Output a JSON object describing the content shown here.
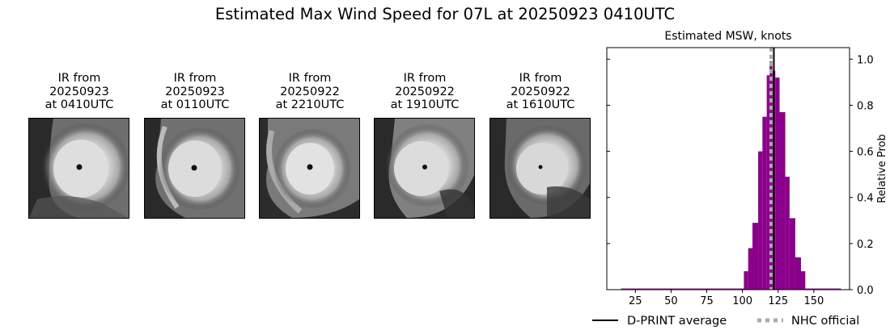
{
  "figure": {
    "title": "Estimated Max Wind Speed for 07L at 20250923 0410UTC"
  },
  "ir_panels": [
    {
      "line1": "IR from",
      "line2": "20250923",
      "line3": "at 0410UTC"
    },
    {
      "line1": "IR from",
      "line2": "20250923",
      "line3": "at 0110UTC"
    },
    {
      "line1": "IR from",
      "line2": "20250922",
      "line3": "at 2210UTC"
    },
    {
      "line1": "IR from",
      "line2": "20250922",
      "line3": "at 1910UTC"
    },
    {
      "line1": "IR from",
      "line2": "20250922",
      "line3": "at 1610UTC"
    }
  ],
  "chart_data": {
    "type": "bar",
    "title": "Estimated MSW, knots",
    "xlabel": "",
    "ylabel": "Relative Prob",
    "xlim": [
      5,
      175
    ],
    "ylim": [
      0,
      1.05
    ],
    "xticks": [
      25,
      50,
      75,
      100,
      125,
      150
    ],
    "yticks": [
      0.0,
      0.2,
      0.4,
      0.6,
      0.8,
      1.0
    ],
    "ytick_labels": [
      "0.0",
      "0.2",
      "0.4",
      "0.6",
      "0.8",
      "1.0"
    ],
    "y_axis_side": "right",
    "grid": false,
    "bar_color": "#8b008b",
    "bins": [
      {
        "x0": 15,
        "x1": 101,
        "value": 0.005
      },
      {
        "x0": 101,
        "x1": 104,
        "value": 0.08
      },
      {
        "x0": 104,
        "x1": 107,
        "value": 0.18
      },
      {
        "x0": 107,
        "x1": 111,
        "value": 0.29
      },
      {
        "x0": 111,
        "x1": 114,
        "value": 0.6
      },
      {
        "x0": 114,
        "x1": 117,
        "value": 0.75
      },
      {
        "x0": 117,
        "x1": 119,
        "value": 0.93
      },
      {
        "x0": 119,
        "x1": 121,
        "value": 0.99
      },
      {
        "x0": 121,
        "x1": 123,
        "value": 0.95
      },
      {
        "x0": 123,
        "x1": 126,
        "value": 0.92
      },
      {
        "x0": 126,
        "x1": 130,
        "value": 0.77
      },
      {
        "x0": 130,
        "x1": 133,
        "value": 0.49
      },
      {
        "x0": 133,
        "x1": 137,
        "value": 0.31
      },
      {
        "x0": 137,
        "x1": 141,
        "value": 0.14
      },
      {
        "x0": 141,
        "x1": 144,
        "value": 0.08
      },
      {
        "x0": 144,
        "x1": 169,
        "value": 0.005
      }
    ],
    "vlines": [
      {
        "name": "D-PRINT average",
        "x": 122,
        "color": "#000000",
        "style": "solid"
      },
      {
        "name": "NHC official",
        "x": 120,
        "color": "#aaaaaa",
        "style": "dotted"
      }
    ],
    "legend": {
      "position": "bottom",
      "entries": [
        "D-PRINT average",
        "NHC official"
      ]
    }
  },
  "legend": {
    "dprint_label": "D-PRINT average",
    "nhc_label": "NHC official"
  }
}
